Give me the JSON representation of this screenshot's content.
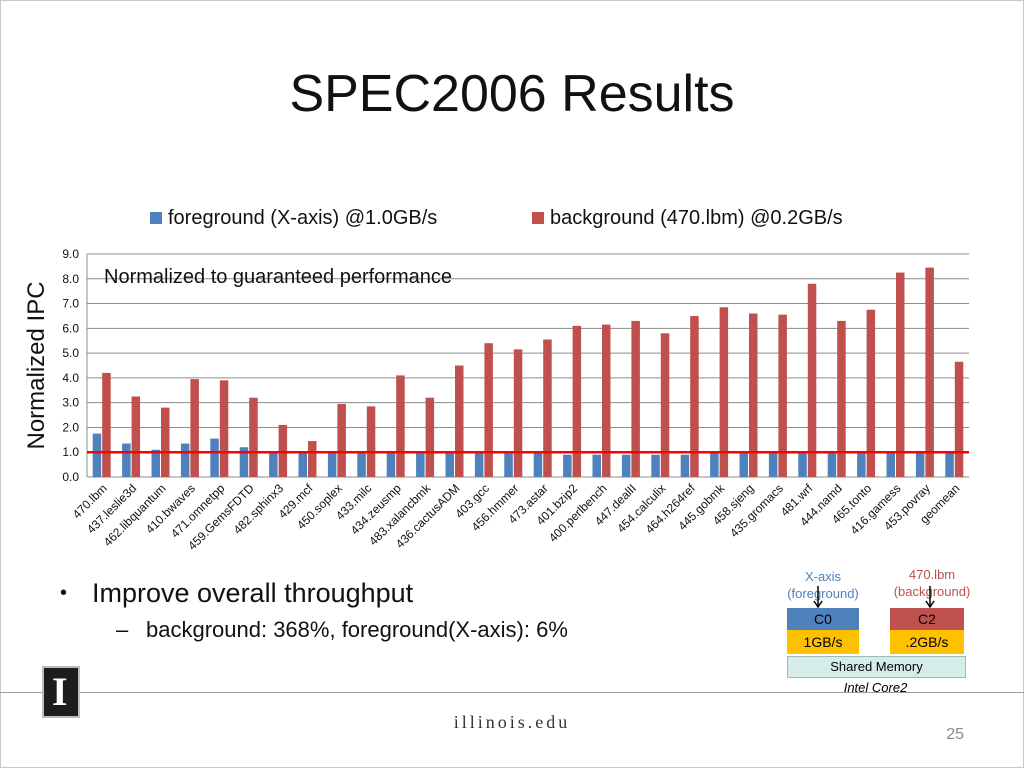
{
  "slide": {
    "title": "SPEC2006 Results",
    "page_number": "25",
    "footer_site": "illinois.edu",
    "logo_text": "I"
  },
  "bullets": {
    "main": "Improve overall throughput",
    "sub": "background: 368%, foreground(X-axis): 6%"
  },
  "diagram": {
    "left_label_line1": "X-axis",
    "left_label_line2": "(foreground)",
    "right_label_line1": "470.lbm",
    "right_label_line2": "(background)",
    "core_left": "C0",
    "core_right": "C2",
    "bw_left": "1GB/s",
    "bw_right": ".2GB/s",
    "shared_memory": "Shared Memory",
    "cpu": "Intel Core2",
    "colors": {
      "core_left": "#4f81bd",
      "core_right": "#c0504d",
      "bw": "#ffc000",
      "shared": "#d6ece9",
      "left_label": "#4f81bd",
      "right_label": "#c0504d"
    }
  },
  "chart_data": {
    "type": "bar",
    "ylabel": "Normalized IPC",
    "xlabel": "",
    "ylim": [
      0,
      9
    ],
    "yticks": [
      "0.0",
      "1.0",
      "2.0",
      "3.0",
      "4.0",
      "5.0",
      "6.0",
      "7.0",
      "8.0",
      "9.0"
    ],
    "grid": true,
    "legend_position": "top",
    "annotation": "Normalized to guaranteed performance",
    "reference_line": {
      "value": 1.0,
      "color": "#ff0000"
    },
    "categories": [
      "470.lbm",
      "437.leslie3d",
      "462.libquantum",
      "410.bwaves",
      "471.omnetpp",
      "459.GemsFDTD",
      "482.sphinx3",
      "429.mcf",
      "450.soplex",
      "433.milc",
      "434.zeusmp",
      "483.xalancbmk",
      "436.cactusADM",
      "403.gcc",
      "456.hmmer",
      "473.astar",
      "401.bzip2",
      "400.perlbench",
      "447.dealII",
      "454.calculix",
      "464.h264ref",
      "445.gobmk",
      "458.sjeng",
      "435.gromacs",
      "481.wrf",
      "444.namd",
      "465.tonto",
      "416.gamess",
      "453.povray",
      "geomean"
    ],
    "series": [
      {
        "name": "foreground (X-axis) @1.0GB/s",
        "color": "#4f81bd",
        "values": [
          1.75,
          1.35,
          1.1,
          1.35,
          1.55,
          1.2,
          1.0,
          1.0,
          1.0,
          1.0,
          1.0,
          0.95,
          0.95,
          1.0,
          0.95,
          0.95,
          0.9,
          0.9,
          0.9,
          0.9,
          0.9,
          1.0,
          0.95,
          0.95,
          1.0,
          0.95,
          1.0,
          0.95,
          0.95,
          1.05
        ]
      },
      {
        "name": "background (470.lbm) @0.2GB/s",
        "color": "#c0504d",
        "values": [
          4.2,
          3.25,
          2.8,
          3.95,
          3.9,
          3.2,
          2.1,
          1.45,
          2.95,
          2.85,
          4.1,
          3.2,
          4.5,
          5.4,
          5.15,
          5.55,
          6.1,
          6.15,
          6.3,
          5.8,
          6.5,
          6.85,
          6.6,
          6.55,
          7.8,
          6.3,
          6.75,
          8.25,
          8.45,
          4.65
        ]
      }
    ]
  }
}
